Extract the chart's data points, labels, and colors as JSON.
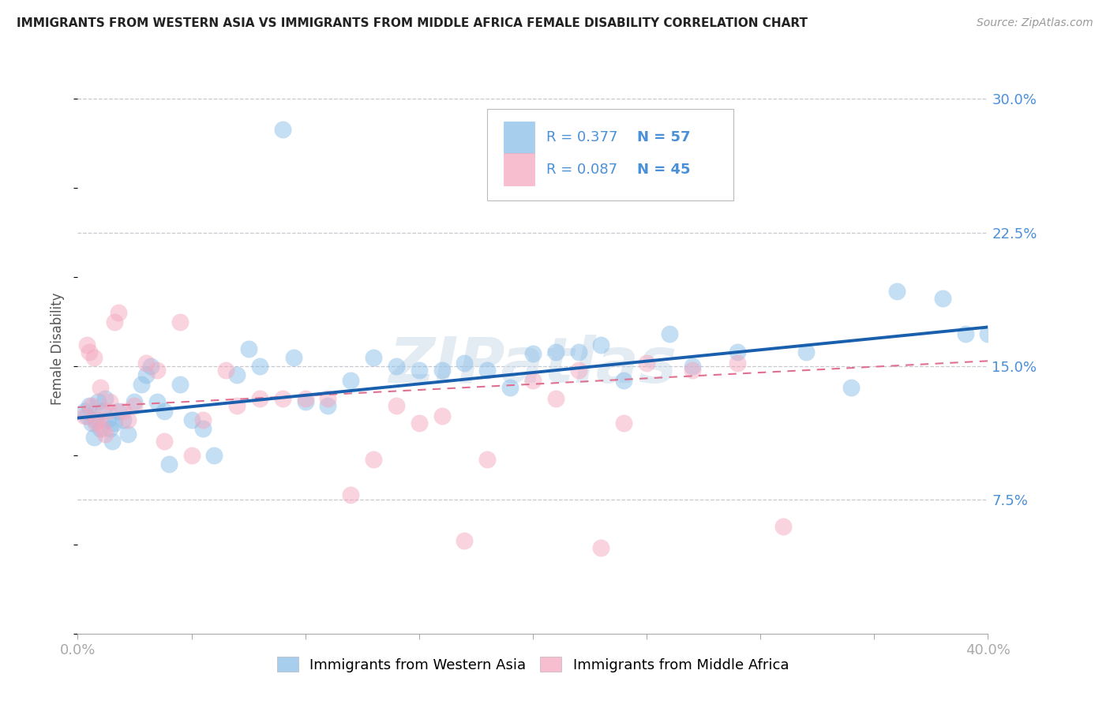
{
  "title": "IMMIGRANTS FROM WESTERN ASIA VS IMMIGRANTS FROM MIDDLE AFRICA FEMALE DISABILITY CORRELATION CHART",
  "source": "Source: ZipAtlas.com",
  "ylabel": "Female Disability",
  "ylabel_right_ticks": [
    "30.0%",
    "22.5%",
    "15.0%",
    "7.5%"
  ],
  "ylabel_right_vals": [
    0.3,
    0.225,
    0.15,
    0.075
  ],
  "xmin": 0.0,
  "xmax": 0.4,
  "ymin": 0.0,
  "ymax": 0.32,
  "blue_color": "#8bbee8",
  "pink_color": "#f5a8bf",
  "line_blue": "#1a5fad",
  "line_pink": "#e07090",
  "watermark": "ZIPatlas",
  "western_asia_x": [
    0.003,
    0.004,
    0.005,
    0.006,
    0.007,
    0.008,
    0.009,
    0.01,
    0.011,
    0.012,
    0.013,
    0.014,
    0.015,
    0.016,
    0.018,
    0.02,
    0.022,
    0.025,
    0.028,
    0.03,
    0.032,
    0.035,
    0.038,
    0.04,
    0.045,
    0.05,
    0.055,
    0.06,
    0.07,
    0.075,
    0.08,
    0.09,
    0.095,
    0.1,
    0.11,
    0.12,
    0.13,
    0.14,
    0.15,
    0.16,
    0.17,
    0.18,
    0.19,
    0.2,
    0.21,
    0.22,
    0.23,
    0.24,
    0.26,
    0.27,
    0.29,
    0.32,
    0.34,
    0.36,
    0.38,
    0.39,
    0.4
  ],
  "western_asia_y": [
    0.125,
    0.122,
    0.128,
    0.118,
    0.11,
    0.12,
    0.13,
    0.115,
    0.125,
    0.132,
    0.12,
    0.115,
    0.108,
    0.118,
    0.125,
    0.12,
    0.112,
    0.13,
    0.14,
    0.145,
    0.15,
    0.13,
    0.125,
    0.095,
    0.14,
    0.12,
    0.115,
    0.1,
    0.145,
    0.16,
    0.15,
    0.283,
    0.155,
    0.13,
    0.128,
    0.142,
    0.155,
    0.15,
    0.148,
    0.148,
    0.152,
    0.148,
    0.138,
    0.157,
    0.158,
    0.158,
    0.162,
    0.142,
    0.168,
    0.15,
    0.158,
    0.158,
    0.138,
    0.192,
    0.188,
    0.168,
    0.168
  ],
  "middle_africa_x": [
    0.003,
    0.004,
    0.005,
    0.006,
    0.007,
    0.008,
    0.009,
    0.01,
    0.011,
    0.012,
    0.013,
    0.014,
    0.016,
    0.018,
    0.02,
    0.022,
    0.025,
    0.03,
    0.035,
    0.038,
    0.045,
    0.05,
    0.055,
    0.065,
    0.07,
    0.08,
    0.09,
    0.1,
    0.11,
    0.12,
    0.13,
    0.14,
    0.15,
    0.16,
    0.17,
    0.18,
    0.2,
    0.21,
    0.22,
    0.23,
    0.24,
    0.25,
    0.27,
    0.29,
    0.31
  ],
  "middle_africa_y": [
    0.122,
    0.162,
    0.158,
    0.128,
    0.155,
    0.118,
    0.12,
    0.138,
    0.115,
    0.112,
    0.125,
    0.13,
    0.175,
    0.18,
    0.125,
    0.12,
    0.128,
    0.152,
    0.148,
    0.108,
    0.175,
    0.1,
    0.12,
    0.148,
    0.128,
    0.132,
    0.132,
    0.132,
    0.132,
    0.078,
    0.098,
    0.128,
    0.118,
    0.122,
    0.052,
    0.098,
    0.142,
    0.132,
    0.148,
    0.048,
    0.118,
    0.152,
    0.148,
    0.152,
    0.06
  ]
}
